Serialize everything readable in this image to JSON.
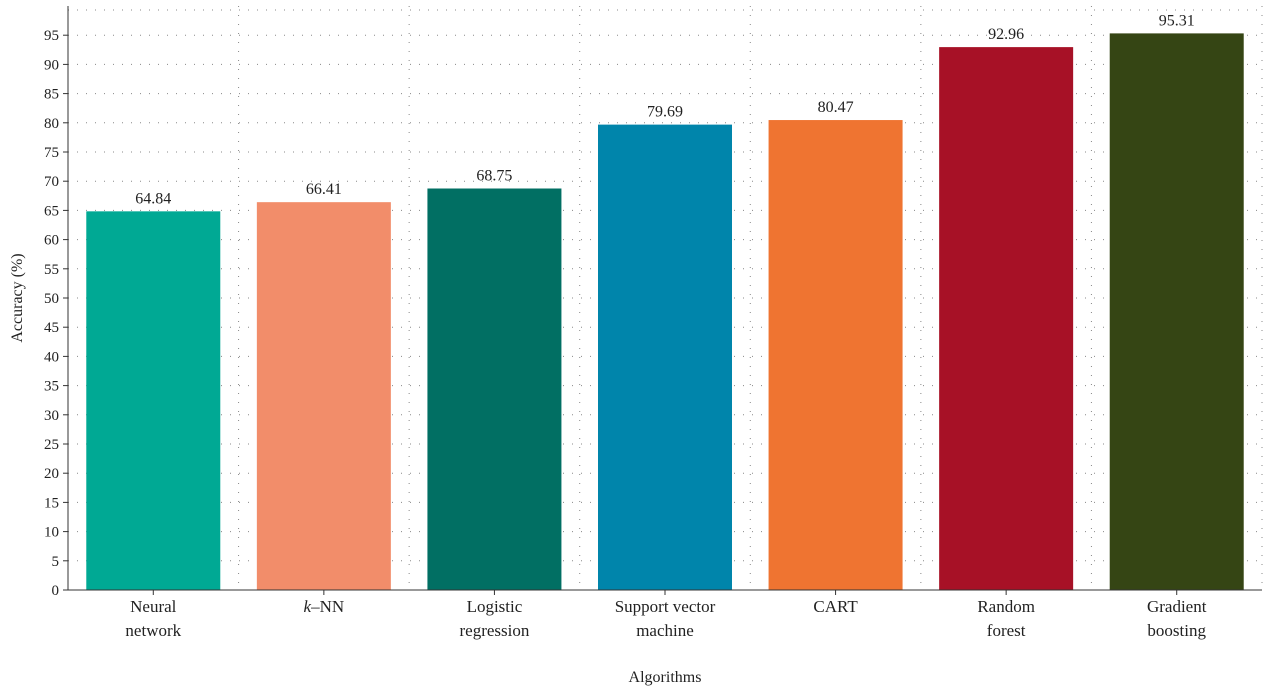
{
  "chart_data": {
    "type": "bar",
    "xlabel": "Algorithms",
    "ylabel": "Accuracy (%)",
    "ylim": [
      0,
      100
    ],
    "yticks": [
      0,
      5,
      10,
      15,
      20,
      25,
      30,
      35,
      40,
      45,
      50,
      55,
      60,
      65,
      70,
      75,
      80,
      85,
      90,
      95
    ],
    "grid": true,
    "categories": [
      {
        "lines": [
          "Neural",
          "network"
        ],
        "italic_prefix": ""
      },
      {
        "lines": [
          "–NN"
        ],
        "italic_prefix": "k"
      },
      {
        "lines": [
          "Logistic",
          "regression"
        ],
        "italic_prefix": ""
      },
      {
        "lines": [
          "Support vector",
          "machine"
        ],
        "italic_prefix": ""
      },
      {
        "lines": [
          "CART"
        ],
        "italic_prefix": ""
      },
      {
        "lines": [
          "Random",
          "forest"
        ],
        "italic_prefix": ""
      },
      {
        "lines": [
          "Gradient",
          "boosting"
        ],
        "italic_prefix": ""
      }
    ],
    "values": [
      64.84,
      66.41,
      68.75,
      79.69,
      80.47,
      92.96,
      95.31
    ],
    "value_labels": [
      "64.84",
      "66.41",
      "68.75",
      "79.69",
      "80.47",
      "92.96",
      "95.31"
    ],
    "colors": [
      "#00a994",
      "#f28d6a",
      "#016f63",
      "#0085ab",
      "#ef7431",
      "#a71126",
      "#354514"
    ]
  }
}
